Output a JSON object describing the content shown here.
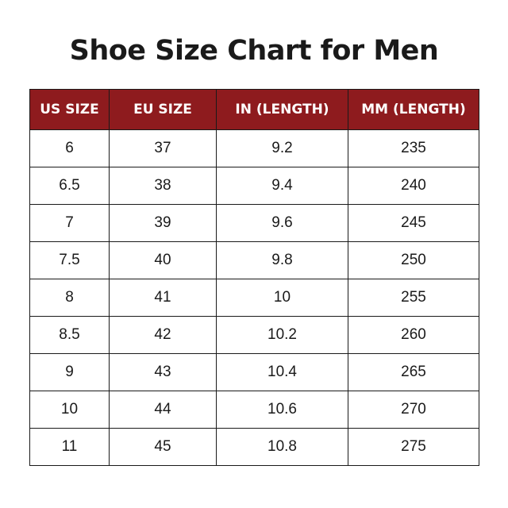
{
  "title": "Shoe Size Chart for Men",
  "headers": [
    "US SIZE",
    "EU SIZE",
    "IN (LENGTH)",
    "MM (LENGTH)"
  ],
  "header_color": "#8e1b1e",
  "rows": [
    [
      "6",
      "37",
      "9.2",
      "235"
    ],
    [
      "6.5",
      "38",
      "9.4",
      "240"
    ],
    [
      "7",
      "39",
      "9.6",
      "245"
    ],
    [
      "7.5",
      "40",
      "9.8",
      "250"
    ],
    [
      "8",
      "41",
      "10",
      "255"
    ],
    [
      "8.5",
      "42",
      "10.2",
      "260"
    ],
    [
      "9",
      "43",
      "10.4",
      "265"
    ],
    [
      "10",
      "44",
      "10.6",
      "270"
    ],
    [
      "11",
      "45",
      "10.8",
      "275"
    ]
  ]
}
